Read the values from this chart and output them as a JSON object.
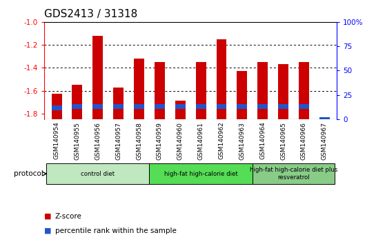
{
  "title": "GDS2413 / 31318",
  "samples": [
    "GSM140954",
    "GSM140955",
    "GSM140956",
    "GSM140957",
    "GSM140958",
    "GSM140959",
    "GSM140960",
    "GSM140961",
    "GSM140962",
    "GSM140963",
    "GSM140964",
    "GSM140965",
    "GSM140966",
    "GSM140967"
  ],
  "zscore": [
    -1.63,
    -1.55,
    -1.12,
    -1.57,
    -1.32,
    -1.35,
    -1.69,
    -1.35,
    -1.15,
    -1.43,
    -1.35,
    -1.37,
    -1.35,
    -1.85
  ],
  "pct_top": [
    -1.73,
    -1.72,
    -1.72,
    -1.72,
    -1.72,
    -1.72,
    -1.72,
    -1.72,
    -1.72,
    -1.72,
    -1.72,
    -1.72,
    -1.72,
    -1.83
  ],
  "pct_bottom": [
    -1.77,
    -1.76,
    -1.76,
    -1.76,
    -1.76,
    -1.76,
    -1.76,
    -1.76,
    -1.76,
    -1.76,
    -1.76,
    -1.76,
    -1.76,
    -1.85
  ],
  "ylim": [
    -1.85,
    -1.0
  ],
  "yticks": [
    -1.8,
    -1.6,
    -1.4,
    -1.2,
    -1.0
  ],
  "right_yticks": [
    0,
    25,
    50,
    75,
    100
  ],
  "bar_color": "#cc0000",
  "percentile_color": "#2255cc",
  "bg_color": "#c8c8c8",
  "group_boundaries": [
    {
      "start": 0,
      "end": 4,
      "color": "#c0e8c0",
      "label": "control diet"
    },
    {
      "start": 5,
      "end": 9,
      "color": "#55dd55",
      "label": "high-fat high-calorie diet"
    },
    {
      "start": 10,
      "end": 13,
      "color": "#88cc88",
      "label": "high-fat high-calorie diet plus\nresveratrol"
    }
  ],
  "legend_zscore": "Z-score",
  "legend_percentile": "percentile rank within the sample",
  "title_fontsize": 11,
  "tick_fontsize": 6.5,
  "bar_width": 0.5
}
